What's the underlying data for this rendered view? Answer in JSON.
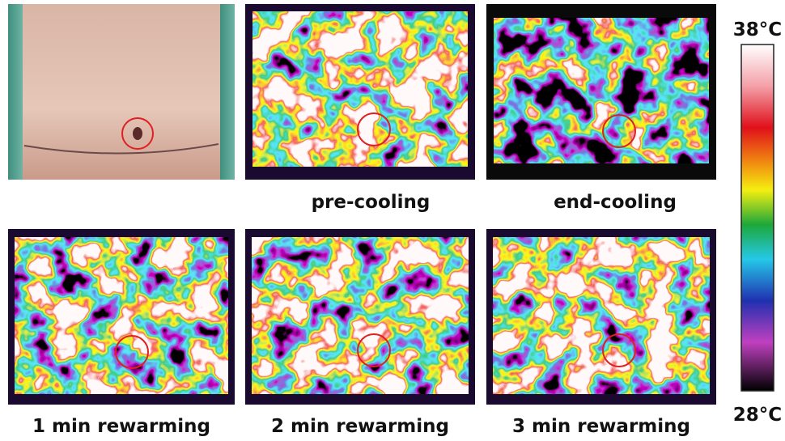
{
  "captions": [
    "pre-cooling",
    "end-cooling",
    "1 min rewarming",
    "2 min rewarming",
    "3 min rewarming"
  ],
  "color_scale": {
    "max": "38°C",
    "min": "28°C"
  }
}
